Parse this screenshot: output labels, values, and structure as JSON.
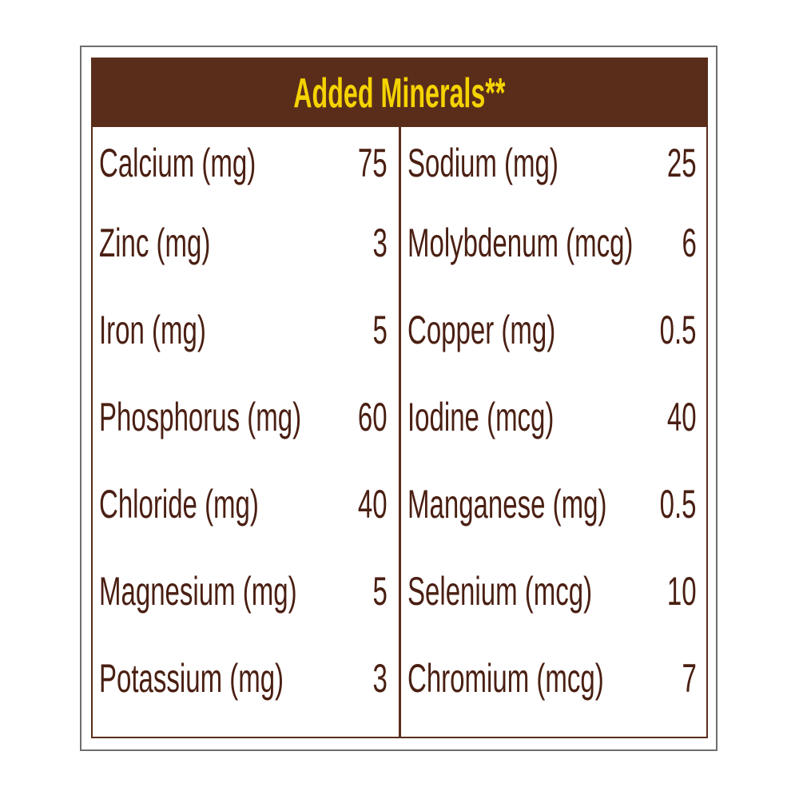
{
  "title": "Added Minerals**",
  "colors": {
    "header_bg": "#5a2d1a",
    "title": "#f5d300",
    "text": "#4a1f12"
  },
  "left": [
    {
      "label": "Calcium (mg)",
      "value": "75"
    },
    {
      "label": "Zinc (mg)",
      "value": "3"
    },
    {
      "label": "Iron (mg)",
      "value": "5"
    },
    {
      "label": "Phosphorus (mg)",
      "value": "60"
    },
    {
      "label": "Chloride (mg)",
      "value": "40"
    },
    {
      "label": "Magnesium (mg)",
      "value": "5"
    },
    {
      "label": "Potassium (mg)",
      "value": "3"
    }
  ],
  "right": [
    {
      "label": "Sodium (mg)",
      "value": "25"
    },
    {
      "label": "Molybdenum (mcg)",
      "value": "6"
    },
    {
      "label": "Copper (mg)",
      "value": "0.5"
    },
    {
      "label": "Iodine (mcg)",
      "value": "40"
    },
    {
      "label": "Manganese (mg)",
      "value": "0.5"
    },
    {
      "label": "Selenium (mcg)",
      "value": "10"
    },
    {
      "label": "Chromium (mcg)",
      "value": "7"
    }
  ]
}
